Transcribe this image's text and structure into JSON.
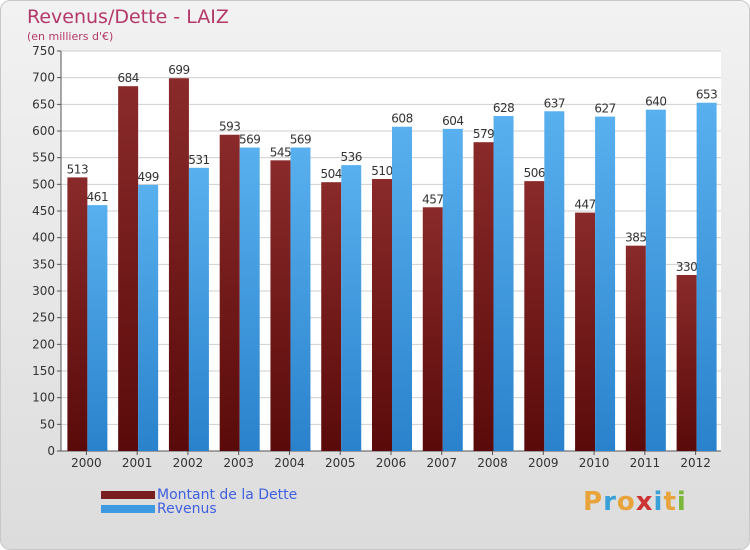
{
  "header": {
    "title": "Revenus/Dette - LAIZ",
    "subtitle": "(en milliers d'€)"
  },
  "logo": {
    "letters": [
      "P",
      "r",
      "o",
      "x",
      "i",
      "t",
      "i"
    ],
    "colors": [
      "#e8a33a",
      "#3aa0d8",
      "#e8a33a",
      "#cc3333",
      "#3aa0d8",
      "#e8a33a",
      "#7ab83a"
    ]
  },
  "chart_data": {
    "type": "bar",
    "categories": [
      "2000",
      "2001",
      "2002",
      "2003",
      "2004",
      "2005",
      "2006",
      "2007",
      "2008",
      "2009",
      "2010",
      "2011",
      "2012"
    ],
    "series": [
      {
        "name": "Montant de la Dette",
        "values": [
          513,
          684,
          699,
          593,
          545,
          504,
          510,
          457,
          579,
          506,
          447,
          385,
          330
        ],
        "color": "#7a1f1f"
      },
      {
        "name": "Revenus",
        "values": [
          461,
          499,
          531,
          569,
          569,
          536,
          608,
          604,
          628,
          637,
          627,
          640,
          653
        ],
        "color": "#3c9ae0"
      }
    ],
    "ylim": [
      0,
      750
    ],
    "yticks": [
      0,
      50,
      100,
      150,
      200,
      250,
      300,
      350,
      400,
      450,
      500,
      550,
      600,
      650,
      700,
      750
    ],
    "grid": true,
    "legend": "bottom-left"
  }
}
